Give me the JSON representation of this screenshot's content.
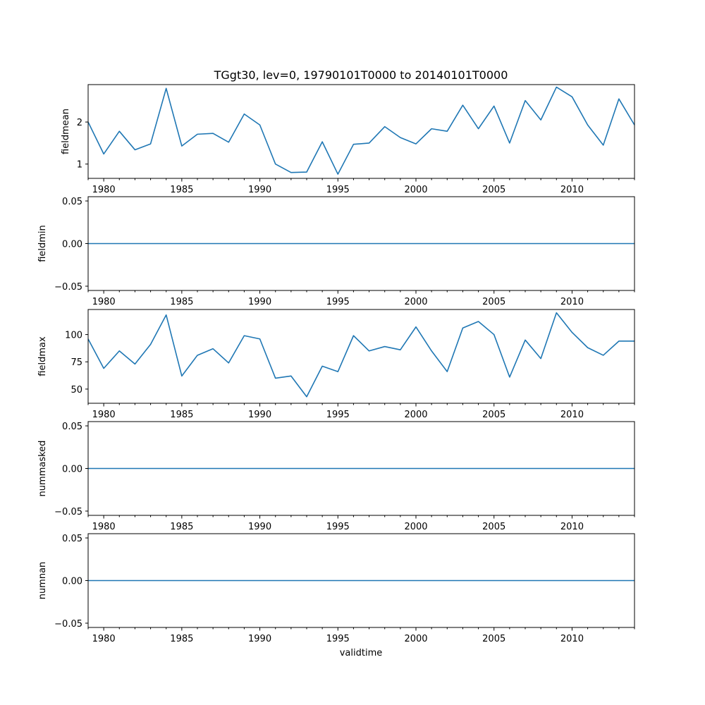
{
  "chart_data": {
    "type": "line",
    "title": "TGgt30, lev=0, 19790101T0000 to 20140101T0000",
    "xlabel": "validtime",
    "xlim": [
      1979,
      2014
    ],
    "x_major_ticks": [
      1980,
      1985,
      1990,
      1995,
      2000,
      2005,
      2010
    ],
    "x_minor_step": 1,
    "x": [
      1979,
      1980,
      1981,
      1982,
      1983,
      1984,
      1985,
      1986,
      1987,
      1988,
      1989,
      1990,
      1991,
      1992,
      1993,
      1994,
      1995,
      1996,
      1997,
      1998,
      1999,
      2000,
      2001,
      2002,
      2003,
      2004,
      2005,
      2006,
      2007,
      2008,
      2009,
      2010,
      2011,
      2012,
      2013,
      2014
    ],
    "line_color": "#1f77b4",
    "panels": [
      {
        "ylabel": "fieldmean",
        "ylim": [
          0.66,
          2.89
        ],
        "yticks": [
          1,
          2
        ],
        "ytick_labels": [
          "1",
          "2"
        ],
        "values": [
          2.0,
          1.24,
          1.78,
          1.34,
          1.48,
          2.8,
          1.43,
          1.71,
          1.73,
          1.52,
          2.19,
          1.93,
          1.0,
          0.8,
          0.81,
          1.53,
          0.76,
          1.47,
          1.5,
          1.89,
          1.63,
          1.48,
          1.84,
          1.78,
          2.4,
          1.84,
          2.38,
          1.5,
          2.51,
          2.05,
          2.83,
          2.6,
          1.93,
          1.45,
          2.55,
          1.93
        ]
      },
      {
        "ylabel": "fieldmin",
        "ylim": [
          -0.055,
          0.055
        ],
        "yticks": [
          -0.05,
          0.0,
          0.05
        ],
        "ytick_labels": [
          "−0.05",
          "0.00",
          "0.05"
        ],
        "values": [
          0,
          0,
          0,
          0,
          0,
          0,
          0,
          0,
          0,
          0,
          0,
          0,
          0,
          0,
          0,
          0,
          0,
          0,
          0,
          0,
          0,
          0,
          0,
          0,
          0,
          0,
          0,
          0,
          0,
          0,
          0,
          0,
          0,
          0,
          0,
          0
        ]
      },
      {
        "ylabel": "fieldmax",
        "ylim": [
          37,
          123
        ],
        "yticks": [
          50,
          75,
          100
        ],
        "ytick_labels": [
          "50",
          "75",
          "100"
        ],
        "values": [
          96,
          69,
          85,
          73,
          91,
          118,
          62,
          81,
          87,
          74,
          99,
          96,
          60,
          62,
          43,
          71,
          66,
          99,
          85,
          89,
          86,
          107,
          85,
          66,
          106,
          112,
          100,
          61,
          95,
          78,
          120,
          102,
          88,
          81,
          94,
          94
        ]
      },
      {
        "ylabel": "nummasked",
        "ylim": [
          -0.055,
          0.055
        ],
        "yticks": [
          -0.05,
          0.0,
          0.05
        ],
        "ytick_labels": [
          "−0.05",
          "0.00",
          "0.05"
        ],
        "values": [
          0,
          0,
          0,
          0,
          0,
          0,
          0,
          0,
          0,
          0,
          0,
          0,
          0,
          0,
          0,
          0,
          0,
          0,
          0,
          0,
          0,
          0,
          0,
          0,
          0,
          0,
          0,
          0,
          0,
          0,
          0,
          0,
          0,
          0,
          0,
          0
        ]
      },
      {
        "ylabel": "numnan",
        "ylim": [
          -0.055,
          0.055
        ],
        "yticks": [
          -0.05,
          0.0,
          0.05
        ],
        "ytick_labels": [
          "−0.05",
          "0.00",
          "0.05"
        ],
        "values": [
          0,
          0,
          0,
          0,
          0,
          0,
          0,
          0,
          0,
          0,
          0,
          0,
          0,
          0,
          0,
          0,
          0,
          0,
          0,
          0,
          0,
          0,
          0,
          0,
          0,
          0,
          0,
          0,
          0,
          0,
          0,
          0,
          0,
          0,
          0,
          0
        ]
      }
    ]
  }
}
